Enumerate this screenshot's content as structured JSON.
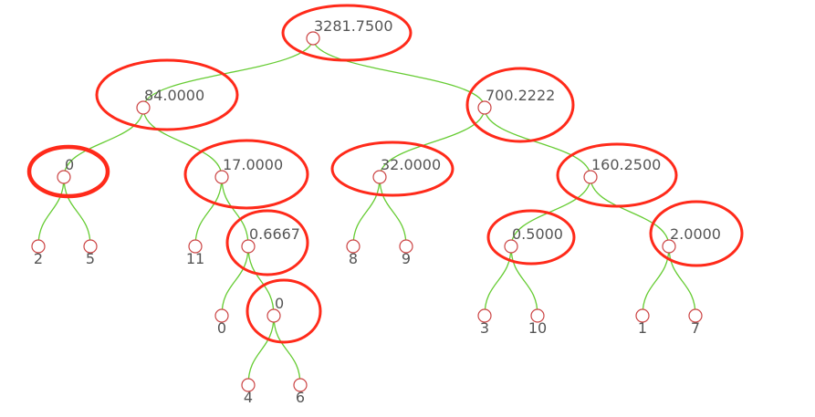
{
  "tree": {
    "id": "n0",
    "label": "3281.7500",
    "children": [
      {
        "id": "n1",
        "label": "84.0000",
        "children": [
          {
            "id": "n3",
            "label": "0",
            "children": [
              {
                "id": "l2",
                "label": "2"
              },
              {
                "id": "l5",
                "label": "5"
              }
            ]
          },
          {
            "id": "n4",
            "label": "17.0000",
            "children": [
              {
                "id": "l11",
                "label": "11"
              },
              {
                "id": "n7",
                "label": "0.6667",
                "children": [
                  {
                    "id": "l0",
                    "label": "0"
                  },
                  {
                    "id": "n10",
                    "label": "0",
                    "children": [
                      {
                        "id": "l4",
                        "label": "4"
                      },
                      {
                        "id": "l6",
                        "label": "6"
                      }
                    ]
                  }
                ]
              }
            ]
          }
        ]
      },
      {
        "id": "n2",
        "label": "700.2222",
        "children": [
          {
            "id": "n5",
            "label": "32.0000",
            "children": [
              {
                "id": "l8",
                "label": "8"
              },
              {
                "id": "l9",
                "label": "9"
              }
            ]
          },
          {
            "id": "n6",
            "label": "160.2500",
            "children": [
              {
                "id": "n8",
                "label": "0.5000",
                "children": [
                  {
                    "id": "l3",
                    "label": "3"
                  },
                  {
                    "id": "l10",
                    "label": "10"
                  }
                ]
              },
              {
                "id": "n9",
                "label": "2.0000",
                "children": [
                  {
                    "id": "l1",
                    "label": "1"
                  },
                  {
                    "id": "l7",
                    "label": "7"
                  }
                ]
              }
            ]
          }
        ]
      }
    ]
  },
  "highlighted": [
    "n0",
    "n1",
    "n2",
    "n3",
    "n4",
    "n5",
    "n6",
    "n7",
    "n8",
    "n9",
    "n10"
  ],
  "colors": {
    "edge": "#66cc33",
    "node_stroke": "#cc4444",
    "highlight": "#ff2a1a",
    "label": "#555555"
  }
}
